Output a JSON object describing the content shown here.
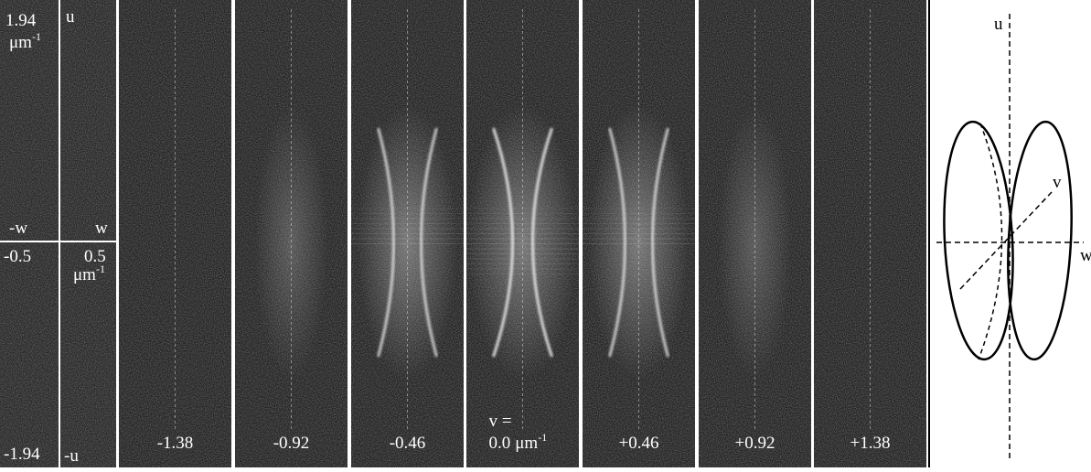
{
  "left_panel": {
    "top_left": "1.94",
    "top_left_unit": {
      "base": "μm",
      "sup": "-1"
    },
    "top_right": "u",
    "mid_left": "-w",
    "mid_right": "w",
    "lower_left": "-0.5",
    "lower_right": "0.5",
    "lower_right_unit": {
      "base": "μm",
      "sup": "-1"
    },
    "bottom_left": "-1.94",
    "bottom_right": "-u"
  },
  "panels": [
    {
      "label": "-1.38"
    },
    {
      "label": "-0.92"
    },
    {
      "label": "-0.46"
    },
    {
      "prefix": "v =",
      "label": "0.0",
      "unit": {
        "base": "μm",
        "sup": "-1"
      }
    },
    {
      "label": "+0.46"
    },
    {
      "label": "+0.92"
    },
    {
      "label": "+1.38"
    }
  ],
  "diagram": {
    "axis_u": "u",
    "axis_v": "v",
    "axis_w": "w"
  }
}
